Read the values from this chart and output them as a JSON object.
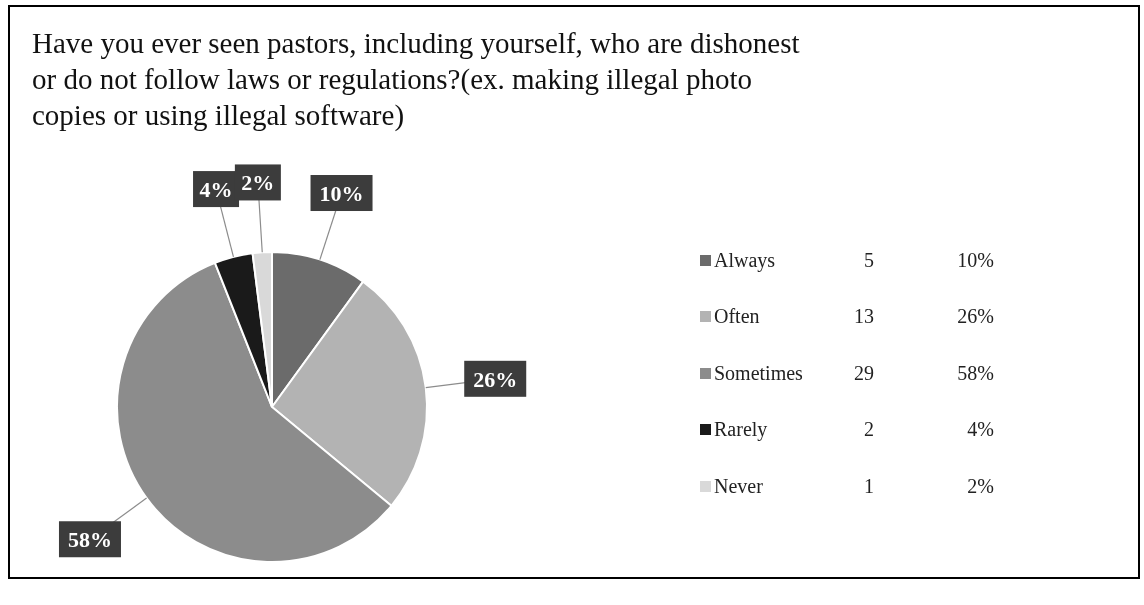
{
  "chart_data": {
    "type": "pie",
    "title": "Have you ever seen pastors, including yourself, who are dishonest or do not follow laws or regulations?(ex. making illegal photo copies or using illegal software)",
    "categories": [
      "Always",
      "Often",
      "Sometimes",
      "Rarely",
      "Never"
    ],
    "values": [
      10,
      26,
      58,
      4,
      2
    ],
    "value_labels": [
      "10%",
      "26%",
      "58%",
      "4%",
      "2%"
    ],
    "annotations": [
      "5",
      "13",
      "29",
      "2",
      "1"
    ],
    "colors": [
      "#6b6b6b",
      "#b3b3b3",
      "#8c8c8c",
      "#1a1a1a",
      "#d9d9d9"
    ],
    "legend": "right"
  }
}
